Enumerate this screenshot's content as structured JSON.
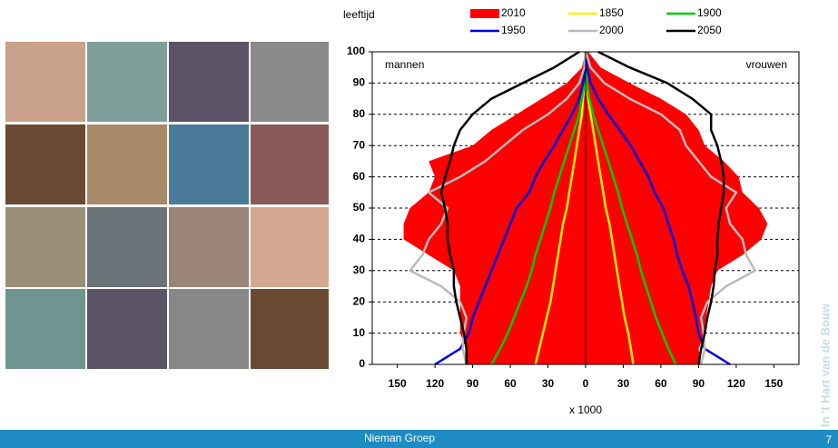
{
  "chart_data": {
    "type": "pyramid",
    "y_label": "leeftijd",
    "x_label": "x 1000",
    "annotations": {
      "left": "mannen",
      "right": "vrouwen"
    },
    "ages": [
      0,
      5,
      10,
      15,
      20,
      25,
      30,
      35,
      40,
      45,
      50,
      55,
      60,
      65,
      70,
      75,
      80,
      85,
      90,
      95,
      100
    ],
    "xlim": [
      -170,
      170
    ],
    "xticks": [
      {
        "value": -150,
        "label": "150"
      },
      {
        "value": -120,
        "label": "120"
      },
      {
        "value": -90,
        "label": "90"
      },
      {
        "value": -60,
        "label": "60"
      },
      {
        "value": -30,
        "label": "30"
      },
      0,
      30,
      60,
      90,
      120,
      150
    ],
    "ylim": [
      0,
      100
    ],
    "yticks": [
      0,
      10,
      20,
      30,
      40,
      50,
      60,
      70,
      80,
      90,
      100
    ],
    "grid": true,
    "series": [
      {
        "name": "2010",
        "color": "#ff0000",
        "area": true,
        "men": [
          -95,
          -95,
          -100,
          -100,
          -100,
          -100,
          -105,
          -125,
          -145,
          -145,
          -140,
          -125,
          -120,
          -125,
          -90,
          -75,
          -55,
          -35,
          -15,
          -3,
          0
        ],
        "women": [
          92,
          90,
          95,
          96,
          98,
          100,
          105,
          125,
          140,
          145,
          138,
          125,
          122,
          110,
          95,
          90,
          80,
          60,
          35,
          12,
          2
        ]
      },
      {
        "name": "1850",
        "color": "#ffee00",
        "men": [
          -40,
          -37,
          -34,
          -31,
          -28,
          -26,
          -24,
          -22,
          -20,
          -18,
          -15,
          -13,
          -11,
          -9,
          -7,
          -5,
          -3,
          -2,
          -1,
          0,
          0
        ],
        "women": [
          38,
          36,
          34,
          31,
          29,
          27,
          25,
          23,
          21,
          19,
          16,
          14,
          12,
          10,
          8,
          6,
          4,
          2,
          1,
          0,
          0
        ]
      },
      {
        "name": "1900",
        "color": "#00cc00",
        "men": [
          -75,
          -68,
          -62,
          -57,
          -52,
          -47,
          -43,
          -40,
          -36,
          -32,
          -28,
          -25,
          -21,
          -17,
          -13,
          -9,
          -5,
          -3,
          -1,
          0,
          0
        ],
        "women": [
          72,
          66,
          61,
          56,
          52,
          48,
          44,
          41,
          37,
          33,
          29,
          26,
          22,
          18,
          14,
          10,
          6,
          3,
          1,
          0,
          0
        ]
      },
      {
        "name": "1950",
        "color": "#0000dd",
        "men": [
          -120,
          -100,
          -93,
          -90,
          -85,
          -80,
          -75,
          -70,
          -65,
          -60,
          -55,
          -45,
          -40,
          -33,
          -25,
          -18,
          -11,
          -5,
          -2,
          0,
          0
        ],
        "women": [
          115,
          95,
          90,
          88,
          85,
          82,
          77,
          73,
          70,
          66,
          62,
          55,
          50,
          43,
          36,
          27,
          18,
          10,
          4,
          1,
          0
        ]
      },
      {
        "name": "2000",
        "color": "#bbbbbb",
        "men": [
          -95,
          -98,
          -97,
          -95,
          -100,
          -115,
          -140,
          -130,
          -125,
          -115,
          -110,
          -125,
          -100,
          -80,
          -65,
          -50,
          -30,
          -15,
          -5,
          -1,
          0
        ],
        "women": [
          92,
          95,
          94,
          92,
          97,
          112,
          135,
          128,
          125,
          115,
          112,
          120,
          100,
          90,
          80,
          75,
          60,
          35,
          15,
          4,
          0
        ]
      },
      {
        "name": "2050",
        "color": "#000000",
        "men": [
          -95,
          -95,
          -97,
          -100,
          -103,
          -105,
          -105,
          -108,
          -110,
          -110,
          -112,
          -115,
          -112,
          -108,
          -105,
          -100,
          -90,
          -75,
          -50,
          -25,
          -5
        ],
        "women": [
          90,
          92,
          95,
          97,
          100,
          102,
          103,
          105,
          105,
          106,
          108,
          110,
          110,
          108,
          105,
          100,
          100,
          85,
          65,
          35,
          10
        ]
      }
    ]
  },
  "footer": {
    "organisation": "Nieman Groep",
    "page": "7",
    "tagline": "In 't Hart van de Bouw"
  }
}
